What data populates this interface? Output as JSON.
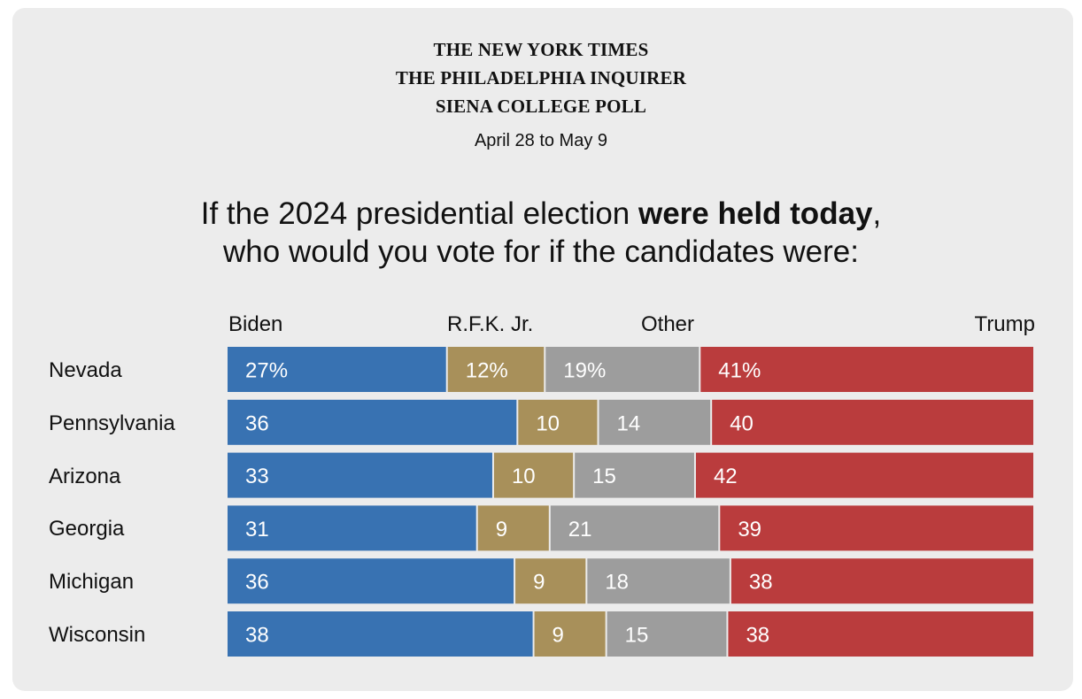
{
  "sources": [
    "THE NEW YORK TIMES",
    "THE PHILADELPHIA INQUIRER",
    "SIENA COLLEGE POLL"
  ],
  "date_range": "April 28 to May 9",
  "question": {
    "part1": "If the 2024 presidential election ",
    "bold": "were held today",
    "part2": ",",
    "line2": "who would you vote for if the candidates were:"
  },
  "colors": {
    "background": "#ececec",
    "Biden": "#3872b2",
    "R.F.K. Jr.": "#a8905a",
    "Other": "#9d9d9d",
    "Trump": "#ba3c3d"
  },
  "chart_data": {
    "type": "bar",
    "orientation": "horizontal",
    "stacked": true,
    "unit": "%",
    "categories": [
      "Nevada",
      "Pennsylvania",
      "Arizona",
      "Georgia",
      "Michigan",
      "Wisconsin"
    ],
    "series": [
      {
        "name": "Biden",
        "values": [
          27,
          36,
          33,
          31,
          36,
          38
        ]
      },
      {
        "name": "R.F.K. Jr.",
        "values": [
          12,
          10,
          10,
          9,
          9,
          9
        ]
      },
      {
        "name": "Other",
        "values": [
          19,
          14,
          15,
          21,
          18,
          15
        ]
      },
      {
        "name": "Trump",
        "values": [
          41,
          40,
          42,
          39,
          38,
          38
        ]
      }
    ],
    "first_row_label_suffix": "%",
    "legend": "top",
    "grid": false
  }
}
